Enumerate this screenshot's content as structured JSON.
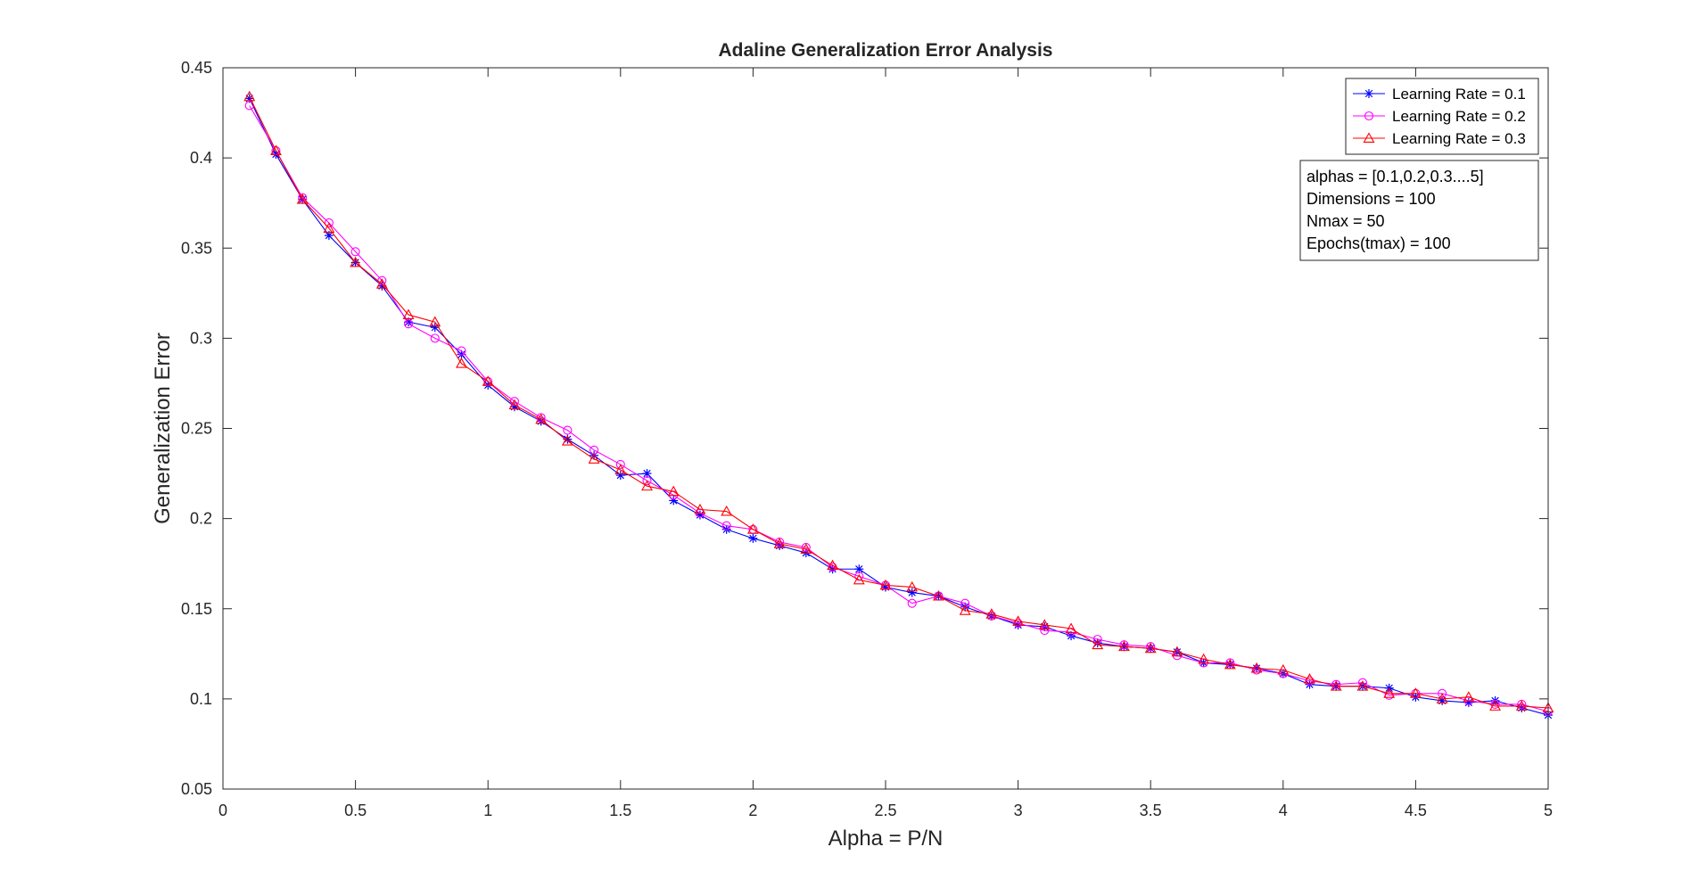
{
  "chart_data": {
    "type": "line",
    "title": "Adaline Generalization Error Analysis",
    "xlabel": "Alpha = P/N",
    "ylabel": "Generalization Error",
    "xlim": [
      0,
      5
    ],
    "ylim": [
      0.05,
      0.45
    ],
    "xticks": [
      0,
      0.5,
      1,
      1.5,
      2,
      2.5,
      3,
      3.5,
      4,
      4.5,
      5
    ],
    "xtick_labels": [
      "0",
      "0.5",
      "1",
      "1.5",
      "2",
      "2.5",
      "3",
      "3.5",
      "4",
      "4.5",
      "5"
    ],
    "yticks": [
      0.05,
      0.1,
      0.15,
      0.2,
      0.25,
      0.3,
      0.35,
      0.4,
      0.45
    ],
    "ytick_labels": [
      "0.05",
      "0.1",
      "0.15",
      "0.2",
      "0.25",
      "0.3",
      "0.35",
      "0.4",
      "0.45"
    ],
    "grid": false,
    "legend_position": "top-right",
    "x": [
      0.1,
      0.2,
      0.3,
      0.4,
      0.5,
      0.6,
      0.7,
      0.8,
      0.9,
      1.0,
      1.1,
      1.2,
      1.3,
      1.4,
      1.5,
      1.6,
      1.7,
      1.8,
      1.9,
      2.0,
      2.1,
      2.2,
      2.3,
      2.4,
      2.5,
      2.6,
      2.7,
      2.8,
      2.9,
      3.0,
      3.1,
      3.2,
      3.3,
      3.4,
      3.5,
      3.6,
      3.7,
      3.8,
      3.9,
      4.0,
      4.1,
      4.2,
      4.3,
      4.4,
      4.5,
      4.6,
      4.7,
      4.8,
      4.9,
      5.0
    ],
    "series": [
      {
        "name": "Learning Rate = 0.1",
        "color": "#0000ff",
        "marker": "star",
        "values": [
          0.433,
          0.402,
          0.377,
          0.357,
          0.342,
          0.329,
          0.309,
          0.306,
          0.291,
          0.274,
          0.262,
          0.254,
          0.244,
          0.235,
          0.224,
          0.225,
          0.21,
          0.202,
          0.194,
          0.189,
          0.185,
          0.181,
          0.172,
          0.172,
          0.162,
          0.159,
          0.157,
          0.151,
          0.146,
          0.141,
          0.14,
          0.135,
          0.131,
          0.129,
          0.128,
          0.126,
          0.12,
          0.119,
          0.117,
          0.114,
          0.108,
          0.107,
          0.107,
          0.106,
          0.101,
          0.099,
          0.098,
          0.099,
          0.095,
          0.091
        ]
      },
      {
        "name": "Learning Rate = 0.2",
        "color": "#ff00ff",
        "marker": "circle",
        "values": [
          0.429,
          0.404,
          0.378,
          0.364,
          0.348,
          0.332,
          0.308,
          0.3,
          0.293,
          0.276,
          0.265,
          0.256,
          0.249,
          0.238,
          0.23,
          0.221,
          0.213,
          0.203,
          0.196,
          0.194,
          0.187,
          0.184,
          0.173,
          0.168,
          0.163,
          0.153,
          0.157,
          0.153,
          0.146,
          0.142,
          0.138,
          0.137,
          0.133,
          0.13,
          0.129,
          0.124,
          0.12,
          0.12,
          0.116,
          0.114,
          0.11,
          0.108,
          0.109,
          0.102,
          0.103,
          0.103,
          0.099,
          0.097,
          0.097,
          0.093
        ]
      },
      {
        "name": "Learning Rate = 0.3",
        "color": "#ff0000",
        "marker": "triangle",
        "values": [
          0.434,
          0.404,
          0.377,
          0.361,
          0.342,
          0.33,
          0.313,
          0.309,
          0.286,
          0.276,
          0.263,
          0.255,
          0.243,
          0.233,
          0.227,
          0.218,
          0.215,
          0.205,
          0.204,
          0.194,
          0.186,
          0.183,
          0.174,
          0.166,
          0.163,
          0.162,
          0.157,
          0.149,
          0.147,
          0.143,
          0.141,
          0.139,
          0.13,
          0.129,
          0.128,
          0.126,
          0.122,
          0.119,
          0.117,
          0.116,
          0.111,
          0.107,
          0.107,
          0.103,
          0.103,
          0.1,
          0.101,
          0.096,
          0.096,
          0.095
        ]
      }
    ],
    "annotation_lines": [
      "alphas = [0.1,0.2,0.3....5]",
      "Dimensions = 100",
      "Nmax = 50",
      "Epochs(tmax) = 100"
    ]
  }
}
